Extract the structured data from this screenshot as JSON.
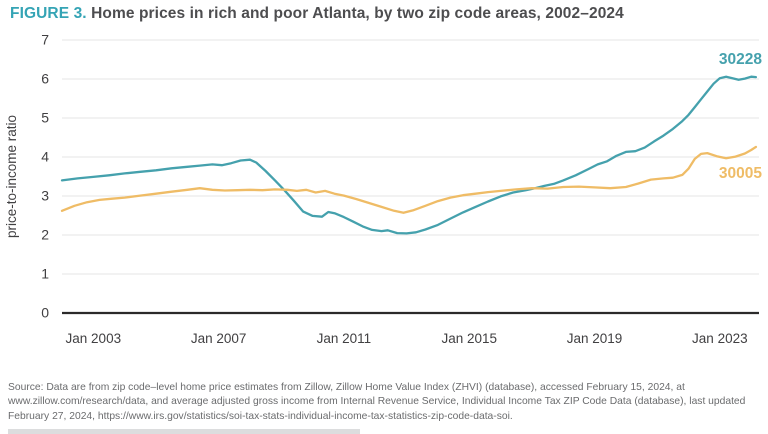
{
  "title": {
    "figure_label": "FIGURE 3.",
    "text": " Home prices in rich and poor Atlanta, by two zip code areas, 2002–2024"
  },
  "source_note": "Source: Data are from zip code–level home price estimates from Zillow, Zillow Home Value Index (ZHVI) (database), accessed February 15, 2024, at www.zillow.com/research/data, and average adjusted gross income from Internal Revenue Service, Individual Income Tax ZIP Code Data (database), last updated February 27, 2024, https://www.irs.gov/statistics/soi-tax-stats-individual-income-tax-statistics-zip-code-data-soi.",
  "colors": {
    "accent_teal": "#35a4b5",
    "series_30228": "#45a1ad",
    "series_30005": "#efbc66",
    "gridline": "#e9e9e9",
    "axis_line": "#2b2a2a",
    "tick_text": "#414042",
    "source_text": "#6a6b6d"
  },
  "chart_data": {
    "type": "line",
    "title": "Home prices in rich and poor Atlanta, by two zip code areas, 2002–2024",
    "xlabel": "",
    "ylabel": "price-to-income ratio",
    "ylim": [
      0,
      7
    ],
    "xlim": [
      2002,
      2024.25
    ],
    "grid": "horizontal",
    "legend_position": "end-of-line-labels",
    "y_ticks": [
      0,
      1,
      2,
      3,
      4,
      5,
      6,
      7
    ],
    "x_ticks": [
      {
        "year": 2003,
        "label": "Jan 2003"
      },
      {
        "year": 2007,
        "label": "Jan 2007"
      },
      {
        "year": 2011,
        "label": "Jan 2011"
      },
      {
        "year": 2015,
        "label": "Jan 2015"
      },
      {
        "year": 2019,
        "label": "Jan 2019"
      },
      {
        "year": 2023,
        "label": "Jan 2023"
      }
    ],
    "series": [
      {
        "name": "30228",
        "color": "#45a1ad",
        "points": [
          [
            2002.0,
            3.4
          ],
          [
            2002.5,
            3.45
          ],
          [
            2003.0,
            3.49
          ],
          [
            2003.5,
            3.53
          ],
          [
            2004.0,
            3.58
          ],
          [
            2004.5,
            3.62
          ],
          [
            2005.0,
            3.66
          ],
          [
            2005.5,
            3.71
          ],
          [
            2006.0,
            3.75
          ],
          [
            2006.4,
            3.78
          ],
          [
            2006.8,
            3.81
          ],
          [
            2007.1,
            3.79
          ],
          [
            2007.4,
            3.84
          ],
          [
            2007.7,
            3.91
          ],
          [
            2008.0,
            3.93
          ],
          [
            2008.2,
            3.86
          ],
          [
            2008.5,
            3.64
          ],
          [
            2008.8,
            3.4
          ],
          [
            2009.1,
            3.15
          ],
          [
            2009.4,
            2.88
          ],
          [
            2009.7,
            2.6
          ],
          [
            2010.0,
            2.49
          ],
          [
            2010.3,
            2.47
          ],
          [
            2010.5,
            2.59
          ],
          [
            2010.7,
            2.56
          ],
          [
            2011.0,
            2.46
          ],
          [
            2011.3,
            2.34
          ],
          [
            2011.6,
            2.22
          ],
          [
            2011.9,
            2.13
          ],
          [
            2012.2,
            2.1
          ],
          [
            2012.4,
            2.12
          ],
          [
            2012.7,
            2.05
          ],
          [
            2013.0,
            2.04
          ],
          [
            2013.3,
            2.07
          ],
          [
            2013.6,
            2.14
          ],
          [
            2014.0,
            2.26
          ],
          [
            2014.4,
            2.42
          ],
          [
            2014.8,
            2.58
          ],
          [
            2015.2,
            2.72
          ],
          [
            2015.6,
            2.86
          ],
          [
            2016.0,
            2.99
          ],
          [
            2016.4,
            3.09
          ],
          [
            2016.8,
            3.15
          ],
          [
            2017.1,
            3.2
          ],
          [
            2017.4,
            3.26
          ],
          [
            2017.7,
            3.31
          ],
          [
            2018.0,
            3.4
          ],
          [
            2018.4,
            3.53
          ],
          [
            2018.8,
            3.69
          ],
          [
            2019.1,
            3.81
          ],
          [
            2019.4,
            3.89
          ],
          [
            2019.7,
            4.03
          ],
          [
            2020.0,
            4.13
          ],
          [
            2020.3,
            4.15
          ],
          [
            2020.6,
            4.24
          ],
          [
            2020.9,
            4.4
          ],
          [
            2021.2,
            4.55
          ],
          [
            2021.5,
            4.72
          ],
          [
            2021.8,
            4.92
          ],
          [
            2022.0,
            5.08
          ],
          [
            2022.2,
            5.28
          ],
          [
            2022.4,
            5.48
          ],
          [
            2022.6,
            5.68
          ],
          [
            2022.8,
            5.88
          ],
          [
            2023.0,
            6.02
          ],
          [
            2023.2,
            6.06
          ],
          [
            2023.4,
            6.02
          ],
          [
            2023.6,
            5.98
          ],
          [
            2023.8,
            6.01
          ],
          [
            2024.0,
            6.06
          ],
          [
            2024.15,
            6.05
          ]
        ]
      },
      {
        "name": "30005",
        "color": "#efbc66",
        "points": [
          [
            2002.0,
            2.62
          ],
          [
            2002.4,
            2.75
          ],
          [
            2002.8,
            2.84
          ],
          [
            2003.2,
            2.9
          ],
          [
            2003.6,
            2.93
          ],
          [
            2004.0,
            2.96
          ],
          [
            2004.5,
            3.01
          ],
          [
            2005.0,
            3.06
          ],
          [
            2005.5,
            3.11
          ],
          [
            2006.0,
            3.16
          ],
          [
            2006.4,
            3.2
          ],
          [
            2006.8,
            3.16
          ],
          [
            2007.2,
            3.14
          ],
          [
            2007.6,
            3.15
          ],
          [
            2008.0,
            3.16
          ],
          [
            2008.4,
            3.15
          ],
          [
            2008.8,
            3.17
          ],
          [
            2009.2,
            3.16
          ],
          [
            2009.5,
            3.13
          ],
          [
            2009.8,
            3.16
          ],
          [
            2010.1,
            3.09
          ],
          [
            2010.4,
            3.13
          ],
          [
            2010.7,
            3.06
          ],
          [
            2011.0,
            3.01
          ],
          [
            2011.4,
            2.92
          ],
          [
            2011.8,
            2.82
          ],
          [
            2012.2,
            2.72
          ],
          [
            2012.6,
            2.62
          ],
          [
            2012.9,
            2.57
          ],
          [
            2013.2,
            2.63
          ],
          [
            2013.6,
            2.75
          ],
          [
            2014.0,
            2.87
          ],
          [
            2014.4,
            2.96
          ],
          [
            2014.8,
            3.02
          ],
          [
            2015.2,
            3.06
          ],
          [
            2015.6,
            3.1
          ],
          [
            2016.0,
            3.13
          ],
          [
            2016.5,
            3.17
          ],
          [
            2017.0,
            3.2
          ],
          [
            2017.5,
            3.19
          ],
          [
            2018.0,
            3.23
          ],
          [
            2018.5,
            3.24
          ],
          [
            2019.0,
            3.22
          ],
          [
            2019.5,
            3.2
          ],
          [
            2020.0,
            3.23
          ],
          [
            2020.4,
            3.32
          ],
          [
            2020.8,
            3.42
          ],
          [
            2021.2,
            3.45
          ],
          [
            2021.5,
            3.47
          ],
          [
            2021.8,
            3.54
          ],
          [
            2022.0,
            3.7
          ],
          [
            2022.2,
            3.95
          ],
          [
            2022.4,
            4.08
          ],
          [
            2022.6,
            4.1
          ],
          [
            2022.9,
            4.02
          ],
          [
            2023.2,
            3.97
          ],
          [
            2023.5,
            4.01
          ],
          [
            2023.8,
            4.09
          ],
          [
            2024.0,
            4.18
          ],
          [
            2024.15,
            4.26
          ]
        ]
      }
    ]
  }
}
